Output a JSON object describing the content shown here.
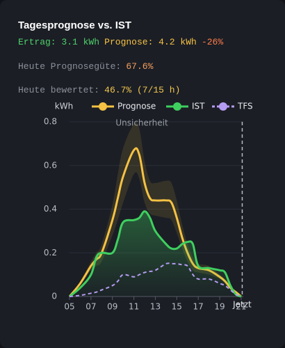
{
  "chart_data": {
    "type": "line",
    "title": "Tagesprognose vs. IST",
    "header_lines": [
      [
        {
          "text": "Ertrag: 3.1 kWh",
          "color": "#4fd06a"
        },
        {
          "text": "Prognose: 4.2 kWh",
          "color": "#f5c243"
        },
        {
          "text": "-26%",
          "color": "#ff7d4a"
        }
      ],
      [
        {
          "text": "Heute Prognosegüte:",
          "color": "#8b8f98"
        },
        {
          "text": "67.6%",
          "color": "#f59f5e"
        }
      ],
      [
        {
          "text": "Heute bewertet:",
          "color": "#8b8f98"
        },
        {
          "text": "46.7% (7/15 h)",
          "color": "#f2c64e"
        }
      ]
    ],
    "y_label": "kWh",
    "x": [
      5,
      6,
      7,
      7.5,
      8,
      9,
      9.5,
      10,
      11,
      11.5,
      12,
      12.5,
      13,
      14,
      14.5,
      15,
      15.5,
      16,
      16.5,
      17,
      18,
      19,
      19.5,
      20,
      20.5,
      21
    ],
    "series": [
      {
        "name": "Prognose",
        "color": "#f5c243",
        "dashed": false,
        "values": [
          0,
          0.06,
          0.14,
          0.17,
          0.2,
          0.35,
          0.45,
          0.55,
          0.67,
          0.65,
          0.52,
          0.45,
          0.44,
          0.44,
          0.43,
          0.36,
          0.27,
          0.2,
          0.15,
          0.13,
          0.12,
          0.09,
          0.07,
          0.04,
          0.02,
          0
        ]
      },
      {
        "name": "IST",
        "color": "#3fcf5f",
        "dashed": false,
        "area": true,
        "values": [
          0,
          0.04,
          0.1,
          0.18,
          0.2,
          0.2,
          0.26,
          0.34,
          0.35,
          0.36,
          0.39,
          0.36,
          0.3,
          0.24,
          0.22,
          0.22,
          0.24,
          0.25,
          0.24,
          0.14,
          0.13,
          0.12,
          0.11,
          0.05,
          0.01,
          0
        ]
      },
      {
        "name": "TFS",
        "color": "#b59cf2",
        "dashed": true,
        "values": [
          0,
          0.005,
          0.015,
          0.02,
          0.03,
          0.05,
          0.07,
          0.1,
          0.09,
          0.1,
          0.11,
          0.115,
          0.12,
          0.15,
          0.15,
          0.15,
          0.145,
          0.14,
          0.1,
          0.08,
          0.08,
          0.06,
          0.05,
          0.03,
          0.01,
          0
        ]
      }
    ],
    "uncertainty": {
      "label": "Unsicherheit",
      "color": "#f5c243",
      "upper": [
        0,
        0.07,
        0.16,
        0.2,
        0.24,
        0.42,
        0.56,
        0.68,
        0.79,
        0.77,
        0.62,
        0.53,
        0.52,
        0.53,
        0.52,
        0.44,
        0.33,
        0.24,
        0.18,
        0.15,
        0.14,
        0.1,
        0.08,
        0.05,
        0.02,
        0
      ],
      "lower": [
        0,
        0.05,
        0.12,
        0.14,
        0.16,
        0.28,
        0.35,
        0.43,
        0.56,
        0.54,
        0.43,
        0.38,
        0.37,
        0.36,
        0.35,
        0.29,
        0.22,
        0.16,
        0.12,
        0.11,
        0.1,
        0.08,
        0.06,
        0.03,
        0.01,
        0
      ]
    },
    "now": {
      "x": 21.1,
      "label": "Jetzt"
    },
    "xlim": [
      5,
      21.2
    ],
    "xticks": [
      {
        "value": 5,
        "label": "05"
      },
      {
        "value": 7,
        "label": "07"
      },
      {
        "value": 9,
        "label": "09"
      },
      11,
      13,
      15,
      17,
      19,
      21
    ],
    "ylim": [
      0,
      0.8
    ],
    "yticks": [
      0,
      0.2,
      0.4,
      0.6,
      0.8
    ],
    "grid": true
  }
}
